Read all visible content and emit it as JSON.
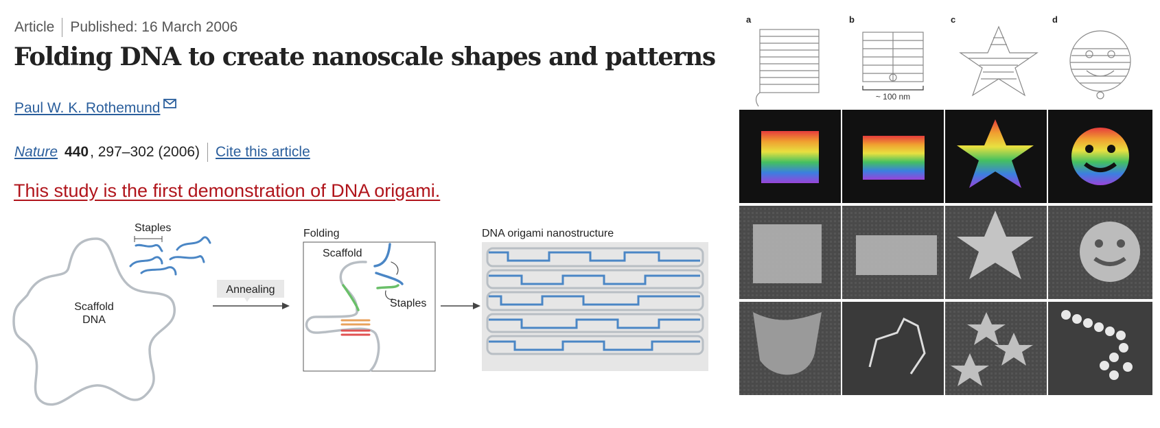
{
  "article": {
    "type": "Article",
    "published": "Published: 16 March 2006",
    "title": "Folding DNA to create nanoscale shapes and patterns",
    "author": "Paul W. K. Rothemund",
    "journal": "Nature",
    "volume": "440",
    "pages": ", 297–302 (2006)",
    "cite_label": "Cite this article",
    "note": "This study is the first demonstration of DNA origami."
  },
  "diagram": {
    "scaffold_label_line1": "Scaffold",
    "scaffold_label_line2": "DNA",
    "staples_label": "Staples",
    "annealing_label": "Annealing",
    "folding_title": "Folding",
    "folding_scaffold_label": "Scaffold",
    "folding_staples_label": "Staples",
    "result_title": "DNA origami nanostructure",
    "colors": {
      "staple": "#4a86c5",
      "scaffold": "#b8bec4",
      "green": "#6abf69",
      "orange": "#e8a25c",
      "red": "#e05252"
    }
  },
  "figure": {
    "panel_letters": [
      "a",
      "b",
      "c",
      "d"
    ],
    "scale_label": "~ 100 nm"
  }
}
